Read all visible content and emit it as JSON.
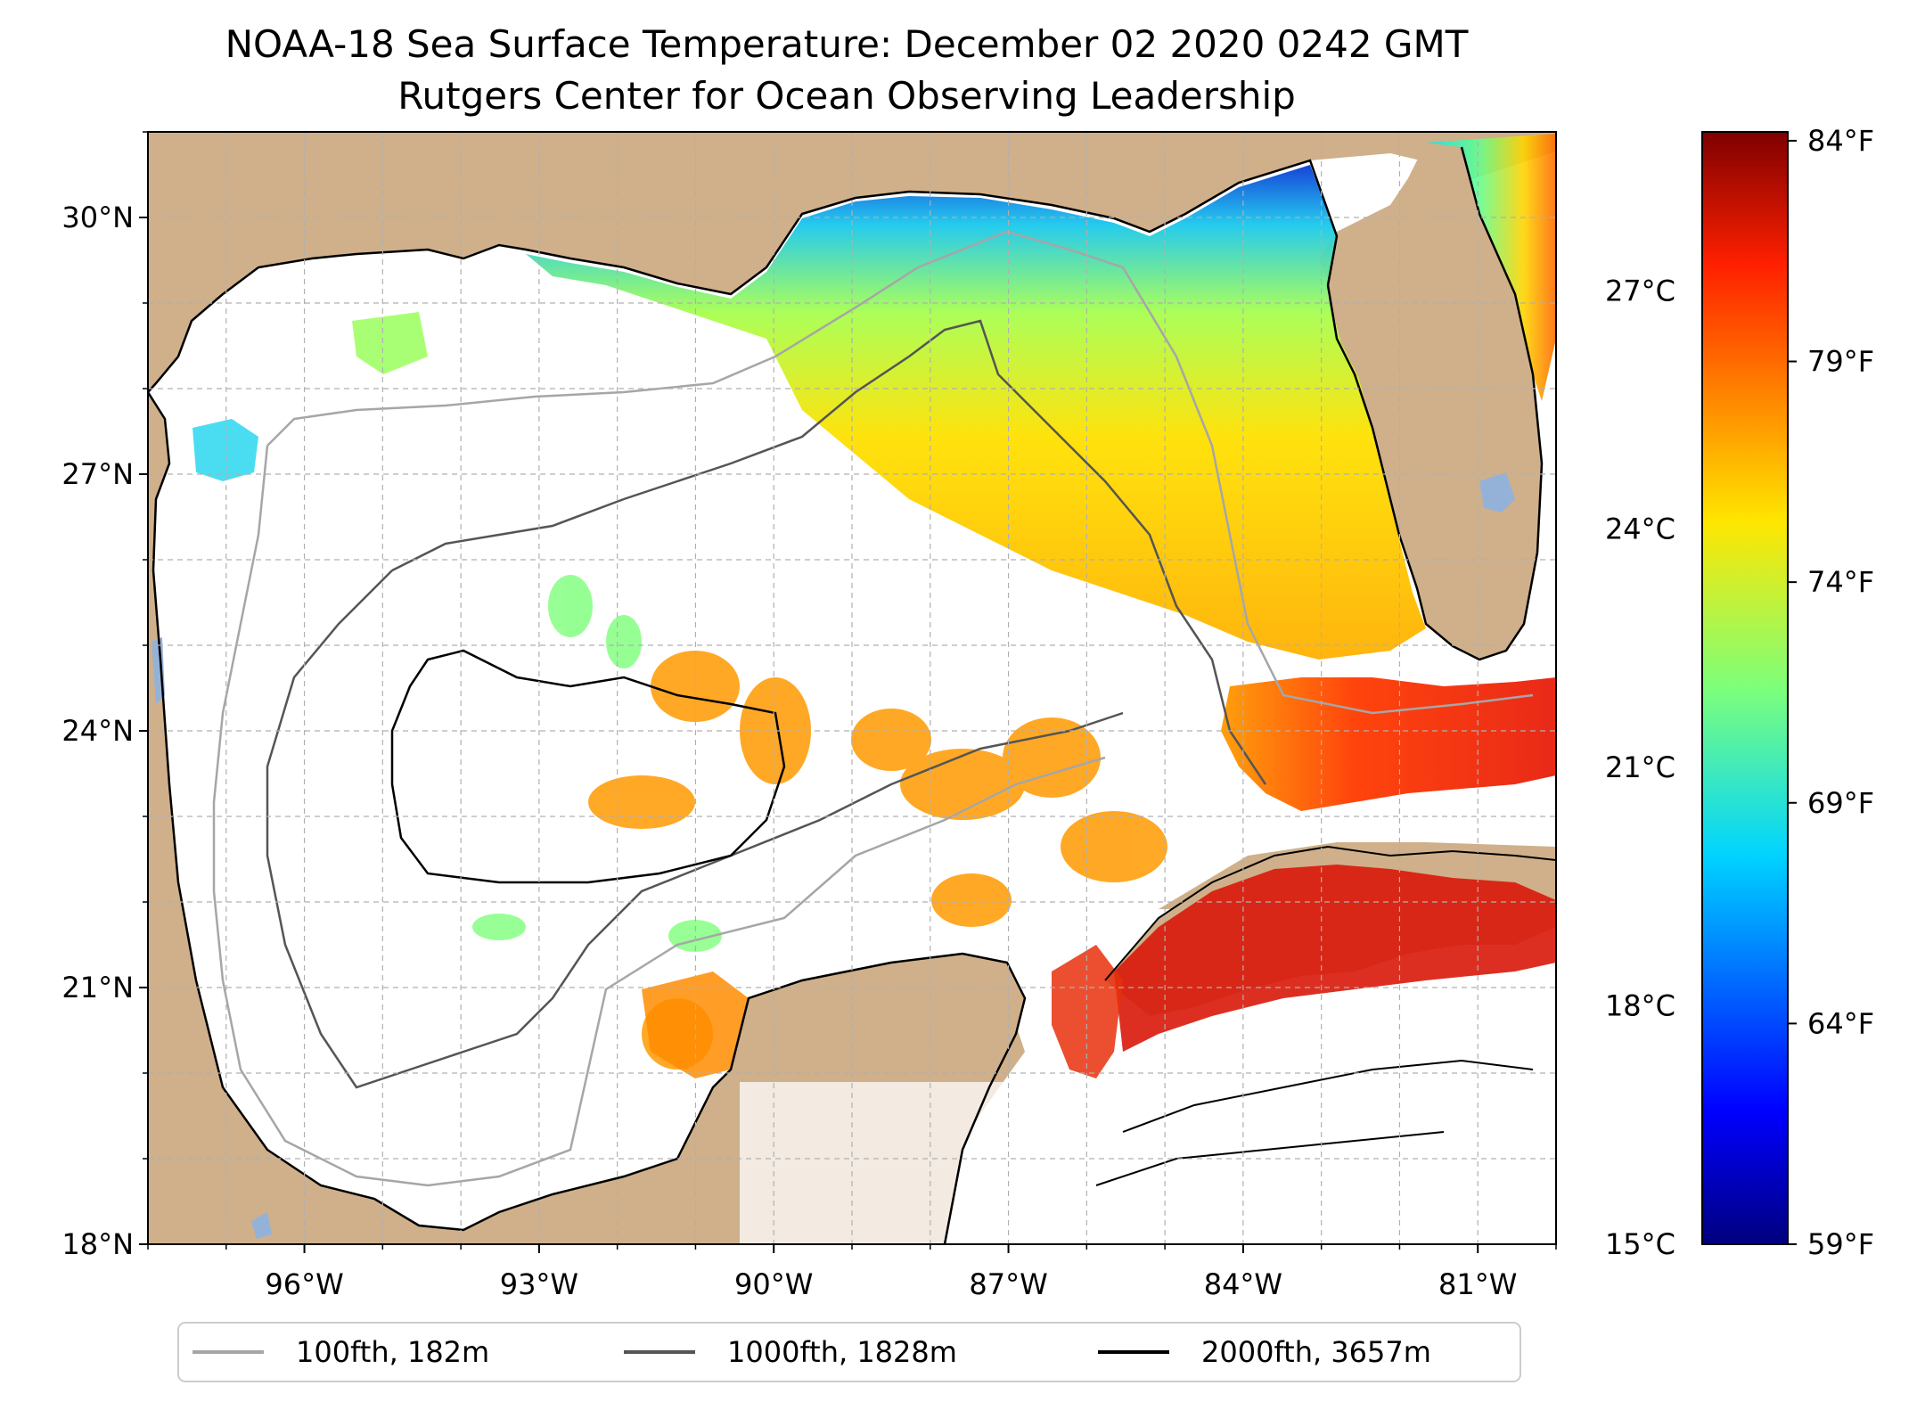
{
  "title": {
    "line1": "NOAA-18 Sea Surface Temperature: December 02 2020 0242 GMT",
    "line2": "Rutgers Center for Ocean Observing Leadership"
  },
  "map": {
    "lon_range": [
      -98,
      -80
    ],
    "lat_range": [
      18,
      31
    ],
    "lon_ticks": [
      {
        "value": -96,
        "label": "96°W"
      },
      {
        "value": -93,
        "label": "93°W"
      },
      {
        "value": -90,
        "label": "90°W"
      },
      {
        "value": -87,
        "label": "87°W"
      },
      {
        "value": -84,
        "label": "84°W"
      },
      {
        "value": -81,
        "label": "81°W"
      }
    ],
    "lat_ticks": [
      {
        "value": 30,
        "label": "30°N"
      },
      {
        "value": 27,
        "label": "27°N"
      },
      {
        "value": 24,
        "label": "24°N"
      },
      {
        "value": 21,
        "label": "21°N"
      },
      {
        "value": 18,
        "label": "18°N"
      }
    ],
    "grid": true,
    "land_color": "#cfb08a",
    "water_color": "#ffffff",
    "inland_water_color": "#94b2d8"
  },
  "colorbar": {
    "celsius_range": [
      15,
      29
    ],
    "fahrenheit_range": [
      59,
      84.2
    ],
    "celsius_ticks": [
      {
        "value": 27,
        "label": "27°C"
      },
      {
        "value": 24,
        "label": "24°C"
      },
      {
        "value": 21,
        "label": "21°C"
      },
      {
        "value": 18,
        "label": "18°C"
      },
      {
        "value": 15,
        "label": "15°C"
      }
    ],
    "fahrenheit_ticks": [
      {
        "value": 84,
        "label": "84°F"
      },
      {
        "value": 79,
        "label": "79°F"
      },
      {
        "value": 74,
        "label": "74°F"
      },
      {
        "value": 69,
        "label": "69°F"
      },
      {
        "value": 64,
        "label": "64°F"
      },
      {
        "value": 59,
        "label": "59°F"
      }
    ],
    "colormap": "jet"
  },
  "legend": {
    "placement": "bottom-center",
    "entries": [
      {
        "label": "100fth, 182m",
        "color": "#a6a6a6"
      },
      {
        "label": "1000fth, 1828m",
        "color": "#555555"
      },
      {
        "label": "2000fth, 3657m",
        "color": "#000000"
      }
    ]
  },
  "colors": {
    "sst_yellow": "#e6e61a",
    "sst_cyan": "#19e0e6",
    "sst_blue": "#0a3ad6",
    "sst_orange": "#ff8c00",
    "sst_red": "#e81e0c"
  }
}
